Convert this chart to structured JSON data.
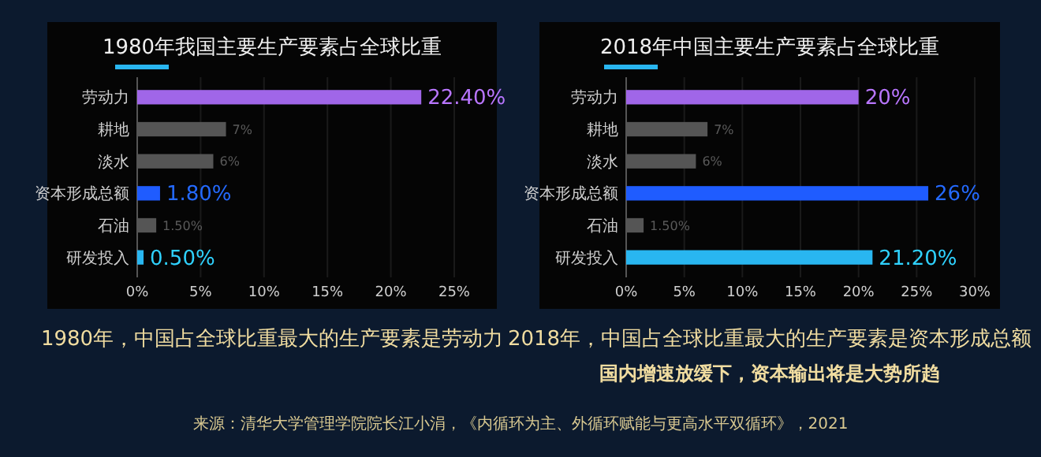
{
  "chart_data": [
    {
      "type": "bar",
      "orientation": "horizontal",
      "title": "1980年我国主要生产要素占全球比重",
      "categories": [
        "劳动力",
        "耕地",
        "淡水",
        "资本形成总额",
        "石油",
        "研发投入"
      ],
      "values": [
        22.4,
        7,
        6,
        1.8,
        1.5,
        0.5
      ],
      "colors": [
        "#a066e8",
        "#555555",
        "#555555",
        "#1f5cff",
        "#555555",
        "#29b6f0"
      ],
      "value_labels": [
        "22.40%",
        "7%",
        "6%",
        "1.80%",
        "1.50%",
        "0.50%"
      ],
      "xlim": [
        0,
        25
      ],
      "xticks": [
        {
          "value": 0,
          "label": "0%"
        },
        {
          "value": 5,
          "label": "5%"
        },
        {
          "value": 10,
          "label": "10%"
        },
        {
          "value": 15,
          "label": "15%"
        },
        {
          "value": 20,
          "label": "20%"
        },
        {
          "value": 25,
          "label": "25%"
        }
      ],
      "grid": "x",
      "annotations": [
        "1980年，中国占全球比重最大的生产要素是劳动力"
      ]
    },
    {
      "type": "bar",
      "orientation": "horizontal",
      "title": "2018年中国主要生产要素占全球比重",
      "categories": [
        "劳动力",
        "耕地",
        "淡水",
        "资本形成总额",
        "石油",
        "研发投入"
      ],
      "values": [
        20,
        7,
        6,
        26,
        1.5,
        21.2
      ],
      "colors": [
        "#a066e8",
        "#555555",
        "#555555",
        "#1f5cff",
        "#555555",
        "#29b6f0"
      ],
      "value_labels": [
        "20%",
        "7%",
        "6%",
        "26%",
        "1.50%",
        "21.20%"
      ],
      "xlim": [
        0,
        30
      ],
      "xticks": [
        {
          "value": 0,
          "label": "0%"
        },
        {
          "value": 5,
          "label": "5%"
        },
        {
          "value": 10,
          "label": "10%"
        },
        {
          "value": 15,
          "label": "15%"
        },
        {
          "value": 20,
          "label": "20%"
        },
        {
          "value": 25,
          "label": "25%"
        },
        {
          "value": 30,
          "label": "30%"
        }
      ],
      "grid": "x",
      "annotations": [
        "2018年，中国占全球比重最大的生产要素是资本形成总额",
        "国内增速放缓下，资本输出将是大势所趋",
        "来源：清华大学管理学院院长江小涓，《内循环为主、外循环赋能与更高水平双循环》，2021"
      ]
    }
  ]
}
